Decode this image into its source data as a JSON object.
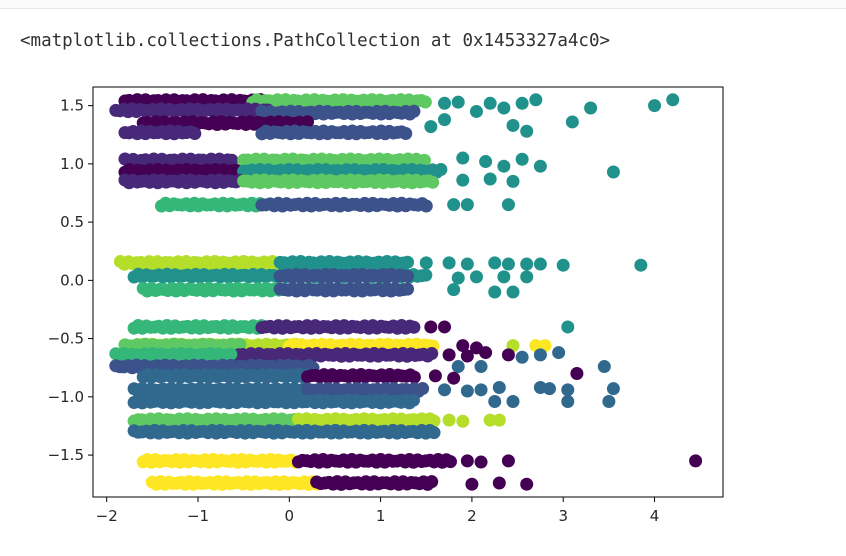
{
  "output": {
    "repr_text": "<matplotlib.collections.PathCollection at 0x1453327a4c0>"
  },
  "chart_data": {
    "type": "scatter",
    "title": "",
    "xlabel": "",
    "ylabel": "",
    "xlim": [
      -2.15,
      4.75
    ],
    "ylim": [
      -1.86,
      1.66
    ],
    "grid": false,
    "colormap": "viridis",
    "colors": {
      "dark_purple": "#440154",
      "indigo": "#3b528b",
      "teal": "#21918c",
      "green": "#5ec962",
      "yellow": "#fde725",
      "slate_blue": "#31688e",
      "lime": "#b5de2b",
      "sea_green": "#35b779",
      "violet": "#482878"
    },
    "x_ticks": [
      -2,
      -1,
      0,
      1,
      2,
      3,
      4
    ],
    "x_tick_labels": [
      "−2",
      "−1",
      "0",
      "1",
      "2",
      "3",
      "4"
    ],
    "y_ticks": [
      -1.5,
      -1.0,
      -0.5,
      0.0,
      0.5,
      1.0,
      1.5
    ],
    "y_tick_labels": [
      "−1.5",
      "−1.0",
      "−0.5",
      "0.0",
      "0.5",
      "1.0",
      "1.5"
    ],
    "bands": [
      {
        "y": 1.54,
        "color": "dark_purple",
        "x_start": -1.8,
        "x_end": -0.3
      },
      {
        "y": 1.54,
        "color": "green",
        "x_start": -0.4,
        "x_end": 1.5
      },
      {
        "y": 1.46,
        "color": "violet",
        "x_start": -1.9,
        "x_end": -0.2
      },
      {
        "y": 1.44,
        "color": "indigo",
        "x_start": -0.3,
        "x_end": 1.4
      },
      {
        "y": 1.35,
        "color": "dark_purple",
        "x_start": -1.6,
        "x_end": 0.2
      },
      {
        "y": 1.27,
        "color": "indigo",
        "x_start": -0.3,
        "x_end": 1.3
      },
      {
        "y": 1.27,
        "color": "violet",
        "x_start": -1.8,
        "x_end": -1.0
      },
      {
        "y": 1.03,
        "color": "violet",
        "x_start": -1.8,
        "x_end": -0.6
      },
      {
        "y": 1.03,
        "color": "green",
        "x_start": -0.5,
        "x_end": 1.5
      },
      {
        "y": 0.94,
        "color": "dark_purple",
        "x_start": -1.8,
        "x_end": -0.5
      },
      {
        "y": 0.94,
        "color": "teal",
        "x_start": -0.5,
        "x_end": 1.7
      },
      {
        "y": 0.85,
        "color": "violet",
        "x_start": -1.8,
        "x_end": -0.5
      },
      {
        "y": 0.85,
        "color": "green",
        "x_start": -0.5,
        "x_end": 1.6
      },
      {
        "y": 0.65,
        "color": "sea_green",
        "x_start": -1.4,
        "x_end": -0.3
      },
      {
        "y": 0.65,
        "color": "indigo",
        "x_start": -0.3,
        "x_end": 1.5
      },
      {
        "y": 0.15,
        "color": "lime",
        "x_start": -1.85,
        "x_end": -0.1
      },
      {
        "y": 0.15,
        "color": "teal",
        "x_start": -0.1,
        "x_end": 1.3
      },
      {
        "y": 0.04,
        "color": "teal",
        "x_start": -1.7,
        "x_end": 1.5
      },
      {
        "y": 0.04,
        "color": "indigo",
        "x_start": -0.1,
        "x_end": 1.3
      },
      {
        "y": -0.08,
        "color": "sea_green",
        "x_start": -1.6,
        "x_end": -0.1
      },
      {
        "y": -0.08,
        "color": "indigo",
        "x_start": -0.1,
        "x_end": 1.3
      },
      {
        "y": -0.4,
        "color": "sea_green",
        "x_start": -1.7,
        "x_end": -0.3
      },
      {
        "y": -0.4,
        "color": "violet",
        "x_start": -0.3,
        "x_end": 1.4
      },
      {
        "y": -0.56,
        "color": "lime",
        "x_start": -1.6,
        "x_end": 0.1
      },
      {
        "y": -0.56,
        "color": "green",
        "x_start": -1.8,
        "x_end": -0.5
      },
      {
        "y": -0.56,
        "color": "yellow",
        "x_start": 0.0,
        "x_end": 1.6
      },
      {
        "y": -0.64,
        "color": "violet",
        "x_start": -0.6,
        "x_end": 1.6
      },
      {
        "y": -0.64,
        "color": "sea_green",
        "x_start": -1.9,
        "x_end": -0.6
      },
      {
        "y": -0.74,
        "color": "indigo",
        "x_start": -1.9,
        "x_end": 0.3
      },
      {
        "y": -0.82,
        "color": "slate_blue",
        "x_start": -1.6,
        "x_end": 0.2
      },
      {
        "y": -0.82,
        "color": "dark_purple",
        "x_start": 0.2,
        "x_end": 1.4
      },
      {
        "y": -0.94,
        "color": "slate_blue",
        "x_start": -1.7,
        "x_end": 0.2
      },
      {
        "y": -0.94,
        "color": "indigo",
        "x_start": 0.2,
        "x_end": 1.5
      },
      {
        "y": -1.04,
        "color": "slate_blue",
        "x_start": -1.7,
        "x_end": 1.4
      },
      {
        "y": -1.2,
        "color": "green",
        "x_start": -1.7,
        "x_end": 0.1
      },
      {
        "y": -1.2,
        "color": "lime",
        "x_start": 0.1,
        "x_end": 1.6
      },
      {
        "y": -1.3,
        "color": "slate_blue",
        "x_start": -1.7,
        "x_end": 1.6
      },
      {
        "y": -1.55,
        "color": "yellow",
        "x_start": -1.6,
        "x_end": 0.1
      },
      {
        "y": -1.55,
        "color": "dark_purple",
        "x_start": 0.1,
        "x_end": 1.8
      },
      {
        "y": -1.74,
        "color": "yellow",
        "x_start": -1.5,
        "x_end": 0.3
      },
      {
        "y": -1.74,
        "color": "dark_purple",
        "x_start": 0.3,
        "x_end": 1.6
      }
    ],
    "points": [
      {
        "x": 1.7,
        "y": 1.52,
        "color": "teal"
      },
      {
        "x": 1.85,
        "y": 1.53,
        "color": "teal"
      },
      {
        "x": 2.05,
        "y": 1.45,
        "color": "teal"
      },
      {
        "x": 2.2,
        "y": 1.52,
        "color": "teal"
      },
      {
        "x": 2.35,
        "y": 1.48,
        "color": "teal"
      },
      {
        "x": 2.55,
        "y": 1.52,
        "color": "teal"
      },
      {
        "x": 2.7,
        "y": 1.55,
        "color": "teal"
      },
      {
        "x": 2.45,
        "y": 1.33,
        "color": "teal"
      },
      {
        "x": 2.6,
        "y": 1.28,
        "color": "teal"
      },
      {
        "x": 3.3,
        "y": 1.48,
        "color": "teal"
      },
      {
        "x": 3.1,
        "y": 1.36,
        "color": "teal"
      },
      {
        "x": 4.0,
        "y": 1.5,
        "color": "teal"
      },
      {
        "x": 4.2,
        "y": 1.55,
        "color": "teal"
      },
      {
        "x": 1.7,
        "y": 1.38,
        "color": "teal"
      },
      {
        "x": 1.55,
        "y": 1.32,
        "color": "teal"
      },
      {
        "x": 1.9,
        "y": 1.05,
        "color": "teal"
      },
      {
        "x": 2.15,
        "y": 1.02,
        "color": "teal"
      },
      {
        "x": 2.35,
        "y": 0.98,
        "color": "teal"
      },
      {
        "x": 2.55,
        "y": 1.04,
        "color": "teal"
      },
      {
        "x": 2.75,
        "y": 0.98,
        "color": "teal"
      },
      {
        "x": 2.2,
        "y": 0.87,
        "color": "teal"
      },
      {
        "x": 2.45,
        "y": 0.85,
        "color": "teal"
      },
      {
        "x": 3.55,
        "y": 0.93,
        "color": "teal"
      },
      {
        "x": 1.9,
        "y": 0.86,
        "color": "teal"
      },
      {
        "x": 1.8,
        "y": 0.65,
        "color": "teal"
      },
      {
        "x": 1.95,
        "y": 0.65,
        "color": "teal"
      },
      {
        "x": 2.4,
        "y": 0.65,
        "color": "teal"
      },
      {
        "x": 1.5,
        "y": 0.15,
        "color": "teal"
      },
      {
        "x": 1.75,
        "y": 0.15,
        "color": "teal"
      },
      {
        "x": 1.95,
        "y": 0.14,
        "color": "teal"
      },
      {
        "x": 2.25,
        "y": 0.15,
        "color": "teal"
      },
      {
        "x": 2.4,
        "y": 0.14,
        "color": "teal"
      },
      {
        "x": 2.6,
        "y": 0.14,
        "color": "teal"
      },
      {
        "x": 2.75,
        "y": 0.14,
        "color": "teal"
      },
      {
        "x": 3.0,
        "y": 0.13,
        "color": "teal"
      },
      {
        "x": 3.85,
        "y": 0.13,
        "color": "teal"
      },
      {
        "x": 1.85,
        "y": 0.02,
        "color": "teal"
      },
      {
        "x": 2.05,
        "y": 0.03,
        "color": "teal"
      },
      {
        "x": 2.35,
        "y": 0.03,
        "color": "teal"
      },
      {
        "x": 2.6,
        "y": 0.03,
        "color": "teal"
      },
      {
        "x": 2.25,
        "y": -0.1,
        "color": "teal"
      },
      {
        "x": 2.45,
        "y": -0.1,
        "color": "teal"
      },
      {
        "x": 1.8,
        "y": -0.08,
        "color": "teal"
      },
      {
        "x": 1.55,
        "y": -0.4,
        "color": "dark_purple"
      },
      {
        "x": 1.7,
        "y": -0.4,
        "color": "dark_purple"
      },
      {
        "x": 3.05,
        "y": -0.4,
        "color": "teal"
      },
      {
        "x": 2.7,
        "y": -0.56,
        "color": "yellow"
      },
      {
        "x": 2.8,
        "y": -0.56,
        "color": "yellow"
      },
      {
        "x": 2.45,
        "y": -0.56,
        "color": "lime"
      },
      {
        "x": 1.9,
        "y": -0.56,
        "color": "dark_purple"
      },
      {
        "x": 2.05,
        "y": -0.58,
        "color": "dark_purple"
      },
      {
        "x": 1.75,
        "y": -0.64,
        "color": "dark_purple"
      },
      {
        "x": 1.95,
        "y": -0.65,
        "color": "dark_purple"
      },
      {
        "x": 2.15,
        "y": -0.62,
        "color": "dark_purple"
      },
      {
        "x": 2.4,
        "y": -0.64,
        "color": "dark_purple"
      },
      {
        "x": 2.55,
        "y": -0.66,
        "color": "slate_blue"
      },
      {
        "x": 2.75,
        "y": -0.64,
        "color": "slate_blue"
      },
      {
        "x": 2.95,
        "y": -0.62,
        "color": "slate_blue"
      },
      {
        "x": 1.85,
        "y": -0.74,
        "color": "slate_blue"
      },
      {
        "x": 2.1,
        "y": -0.74,
        "color": "slate_blue"
      },
      {
        "x": 3.45,
        "y": -0.74,
        "color": "slate_blue"
      },
      {
        "x": 3.15,
        "y": -0.8,
        "color": "dark_purple"
      },
      {
        "x": 1.6,
        "y": -0.82,
        "color": "dark_purple"
      },
      {
        "x": 1.8,
        "y": -0.84,
        "color": "dark_purple"
      },
      {
        "x": 1.7,
        "y": -0.94,
        "color": "slate_blue"
      },
      {
        "x": 1.95,
        "y": -0.95,
        "color": "slate_blue"
      },
      {
        "x": 2.1,
        "y": -0.94,
        "color": "slate_blue"
      },
      {
        "x": 2.3,
        "y": -0.92,
        "color": "slate_blue"
      },
      {
        "x": 2.75,
        "y": -0.92,
        "color": "slate_blue"
      },
      {
        "x": 2.85,
        "y": -0.93,
        "color": "slate_blue"
      },
      {
        "x": 3.05,
        "y": -0.94,
        "color": "slate_blue"
      },
      {
        "x": 3.55,
        "y": -0.93,
        "color": "slate_blue"
      },
      {
        "x": 2.25,
        "y": -1.04,
        "color": "slate_blue"
      },
      {
        "x": 2.45,
        "y": -1.04,
        "color": "slate_blue"
      },
      {
        "x": 3.05,
        "y": -1.04,
        "color": "slate_blue"
      },
      {
        "x": 3.5,
        "y": -1.04,
        "color": "slate_blue"
      },
      {
        "x": 1.75,
        "y": -1.2,
        "color": "lime"
      },
      {
        "x": 1.9,
        "y": -1.21,
        "color": "lime"
      },
      {
        "x": 2.2,
        "y": -1.2,
        "color": "lime"
      },
      {
        "x": 2.3,
        "y": -1.2,
        "color": "lime"
      },
      {
        "x": 1.95,
        "y": -1.55,
        "color": "dark_purple"
      },
      {
        "x": 2.1,
        "y": -1.56,
        "color": "dark_purple"
      },
      {
        "x": 2.4,
        "y": -1.55,
        "color": "dark_purple"
      },
      {
        "x": 4.45,
        "y": -1.55,
        "color": "dark_purple"
      },
      {
        "x": 1.5,
        "y": -1.74,
        "color": "dark_purple"
      },
      {
        "x": 2.0,
        "y": -1.75,
        "color": "dark_purple"
      },
      {
        "x": 2.3,
        "y": -1.74,
        "color": "dark_purple"
      },
      {
        "x": 2.6,
        "y": -1.75,
        "color": "dark_purple"
      }
    ]
  }
}
